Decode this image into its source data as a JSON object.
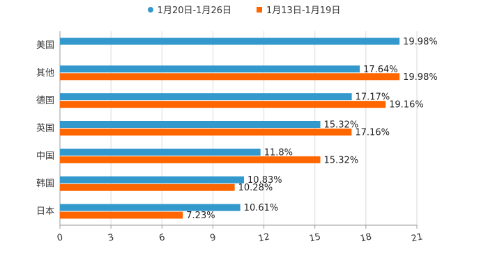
{
  "chart_data": {
    "type": "bar",
    "orientation": "horizontal",
    "categories": [
      "美国",
      "其他",
      "德国",
      "英国",
      "中国",
      "韩国",
      "日本"
    ],
    "series": [
      {
        "name": "1月20日-1月26日",
        "color": "#3399CC",
        "values": [
          19.98,
          17.64,
          17.17,
          15.32,
          11.8,
          10.83,
          10.61
        ],
        "labels": [
          "19.98%",
          "17.64%",
          "17.17%",
          "15.32%",
          "11.8%",
          "10.83%",
          "10.61%"
        ]
      },
      {
        "name": "1月13日-1月19日",
        "color": "#FF6600",
        "values": [
          null,
          19.98,
          19.16,
          17.16,
          15.32,
          10.28,
          7.23
        ],
        "labels": [
          null,
          "19.98%",
          "19.16%",
          "17.16%",
          "15.32%",
          "10.28%",
          "7.23%"
        ]
      }
    ],
    "xlim": [
      0,
      21
    ],
    "xticks": [
      "0",
      "3",
      "6",
      "9",
      "12",
      "15",
      "18",
      "21"
    ],
    "grid": true,
    "legend_position": "top"
  }
}
